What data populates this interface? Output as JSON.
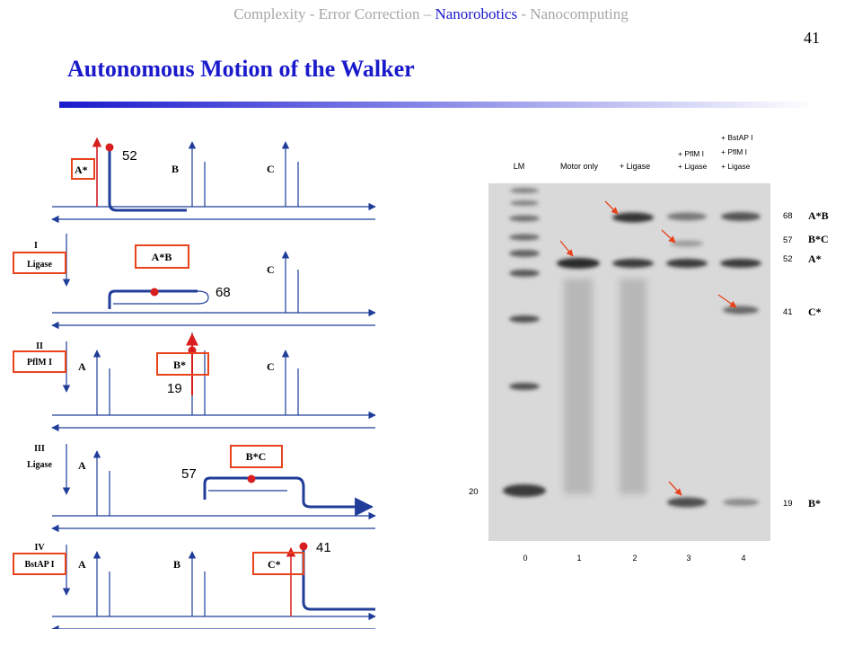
{
  "header": {
    "breadcrumb": [
      {
        "text": "Complexity - Error Correction – ",
        "active": false
      },
      {
        "text": "Nanorobotics",
        "active": true
      },
      {
        "text": " - Nanocomputing",
        "active": false
      }
    ],
    "page_number": "41"
  },
  "slide_title": "Autonomous Motion of the Walker",
  "schematic": {
    "panels": [
      {
        "labels": [
          "A*",
          "B",
          "C"
        ],
        "length": "52"
      },
      {
        "step": "I",
        "enzyme": "Ligase",
        "labels": [
          "A*B",
          "C"
        ],
        "length": "68"
      },
      {
        "step": "II",
        "enzyme": "PflM I",
        "labels": [
          "A",
          "B*",
          "C"
        ],
        "length": "19"
      },
      {
        "step": "III",
        "enzyme": "Ligase",
        "labels": [
          "A",
          "B*C"
        ],
        "length": "57"
      },
      {
        "step": "IV",
        "enzyme": "BstAP I",
        "labels": [
          "A",
          "B",
          "C*"
        ],
        "length": "41"
      }
    ]
  },
  "gel": {
    "lanes": [
      {
        "header": [
          "LM"
        ],
        "number": "0"
      },
      {
        "header": [
          "Motor only"
        ],
        "number": "1"
      },
      {
        "header": [
          "+ Ligase"
        ],
        "number": "2"
      },
      {
        "header": [
          "+ PflM I",
          "+ Ligase"
        ],
        "number": "3"
      },
      {
        "header": [
          "+ BstAP I",
          "+ PflM I",
          "+ Ligase"
        ],
        "number": "4"
      }
    ],
    "band_labels_right": [
      {
        "size": "68",
        "name": "A*B"
      },
      {
        "size": "57",
        "name": "B*C"
      },
      {
        "size": "52",
        "name": "A*"
      },
      {
        "size": "41",
        "name": "C*"
      },
      {
        "size": "19",
        "name": "B*"
      }
    ],
    "marker_left": "20"
  },
  "colors": {
    "title": "#1a1acc",
    "strand": "#1f3d99",
    "highlight_box": "#e8431c",
    "arrow": "#e8431c",
    "marker_dot": "#d81e1e"
  }
}
